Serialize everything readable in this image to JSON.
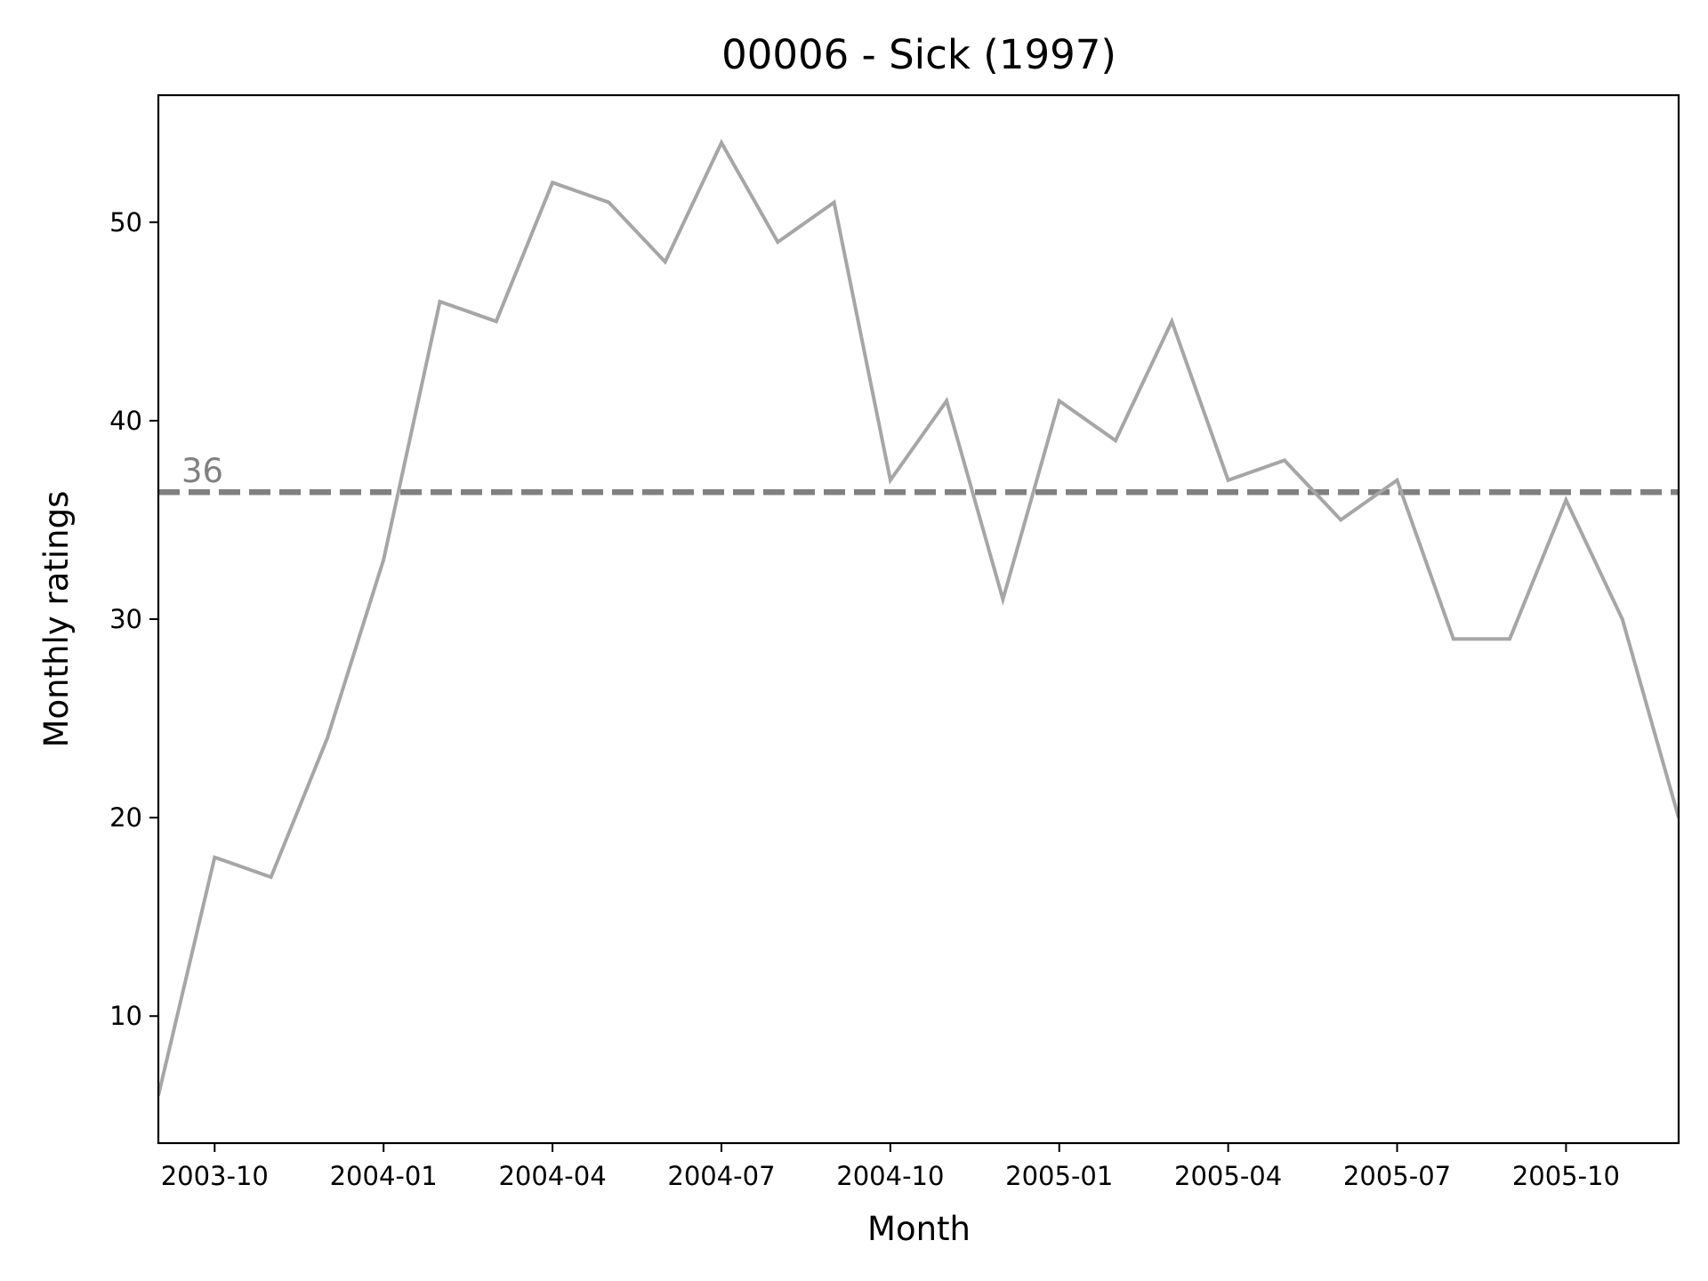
{
  "chart_data": {
    "type": "line",
    "title": "00006 - Sick (1997)",
    "xlabel": "Month",
    "ylabel": "Monthly ratings",
    "x": [
      "2003-09",
      "2003-10",
      "2003-11",
      "2003-12",
      "2004-01",
      "2004-02",
      "2004-03",
      "2004-04",
      "2004-05",
      "2004-06",
      "2004-07",
      "2004-08",
      "2004-09",
      "2004-10",
      "2004-11",
      "2004-12",
      "2005-01",
      "2005-02",
      "2005-03",
      "2005-04",
      "2005-05",
      "2005-06",
      "2005-07",
      "2005-08",
      "2005-09",
      "2005-10",
      "2005-11",
      "2005-12"
    ],
    "series": [
      {
        "values": [
          6,
          18,
          17,
          24,
          33,
          46,
          45,
          52,
          51,
          48,
          54,
          49,
          51,
          37,
          41,
          31,
          41,
          39,
          45,
          37,
          38,
          35,
          37,
          29,
          29,
          36,
          30,
          20
        ]
      }
    ],
    "xlim": [
      "2003-09",
      "2005-12"
    ],
    "ylim": [
      3.6,
      56.4
    ],
    "x_ticks": [
      "2003-10",
      "2004-01",
      "2004-04",
      "2004-07",
      "2004-10",
      "2005-01",
      "2005-04",
      "2005-07",
      "2005-10"
    ],
    "y_ticks": [
      10,
      20,
      30,
      40,
      50
    ],
    "mean_line": {
      "value": 36.4,
      "label": "36",
      "style": "dashed"
    },
    "grid": false,
    "colors": {
      "series": "#a6a6a6",
      "mean_line": "#808080",
      "mean_label": "#808080",
      "axes": "#000000"
    }
  }
}
